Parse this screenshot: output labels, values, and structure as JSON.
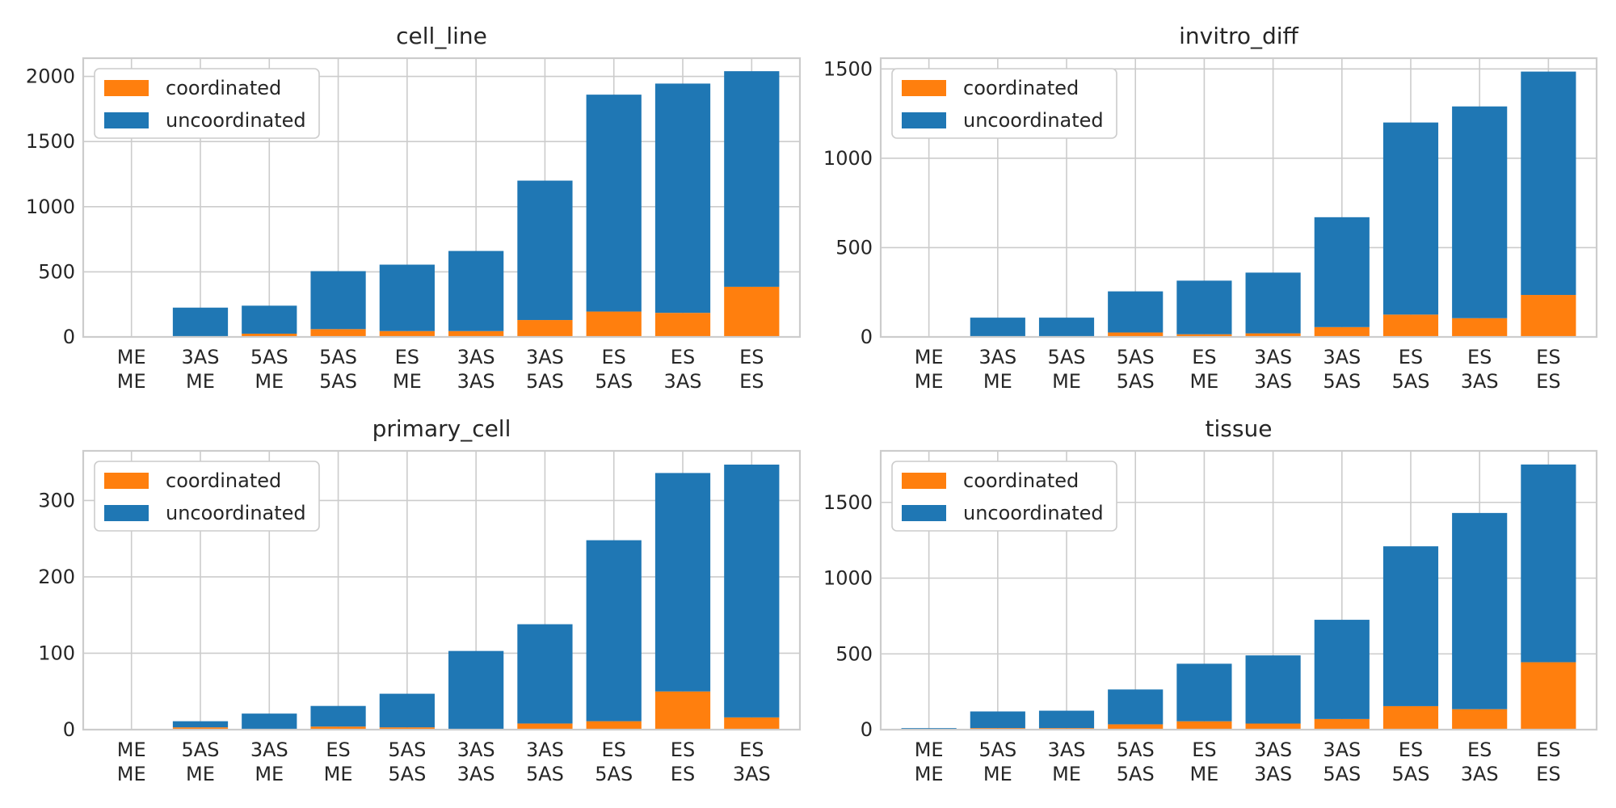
{
  "chart_data": [
    {
      "type": "bar",
      "stacked": true,
      "title": "cell_line",
      "categories": [
        "ME\nME",
        "3AS\nME",
        "5AS\nME",
        "5AS\n5AS",
        "ES\nME",
        "3AS\n3AS",
        "3AS\n5AS",
        "ES\n5AS",
        "ES\n3AS",
        "ES\nES"
      ],
      "series": [
        {
          "name": "coordinated",
          "color": "#ff7f0e",
          "values": [
            0,
            5,
            25,
            60,
            45,
            45,
            130,
            195,
            185,
            385
          ]
        },
        {
          "name": "uncoordinated",
          "color": "#1f77b4",
          "values": [
            0,
            220,
            215,
            445,
            510,
            615,
            1070,
            1665,
            1760,
            1655
          ]
        }
      ],
      "ylim": [
        0,
        2140
      ],
      "yticks": [
        0,
        500,
        1000,
        1500,
        2000
      ],
      "grid": true,
      "legend": "top-left"
    },
    {
      "type": "bar",
      "stacked": true,
      "title": "invitro_diff",
      "categories": [
        "ME\nME",
        "3AS\nME",
        "5AS\nME",
        "5AS\n5AS",
        "ES\nME",
        "3AS\n3AS",
        "3AS\n5AS",
        "ES\n5AS",
        "ES\n3AS",
        "ES\nES"
      ],
      "series": [
        {
          "name": "coordinated",
          "color": "#ff7f0e",
          "values": [
            0,
            3,
            3,
            25,
            15,
            20,
            55,
            125,
            105,
            235
          ]
        },
        {
          "name": "uncoordinated",
          "color": "#1f77b4",
          "values": [
            0,
            105,
            105,
            230,
            300,
            340,
            615,
            1075,
            1185,
            1250
          ]
        }
      ],
      "ylim": [
        0,
        1560
      ],
      "yticks": [
        0,
        500,
        1000,
        1500
      ],
      "grid": true,
      "legend": "top-left"
    },
    {
      "type": "bar",
      "stacked": true,
      "title": "primary_cell",
      "categories": [
        "ME\nME",
        "5AS\nME",
        "3AS\nME",
        "ES\nME",
        "5AS\n5AS",
        "3AS\n3AS",
        "3AS\n5AS",
        "ES\n5AS",
        "ES\nES",
        "ES\n3AS"
      ],
      "series": [
        {
          "name": "coordinated",
          "color": "#ff7f0e",
          "values": [
            0,
            3,
            1,
            4,
            3,
            1,
            8,
            11,
            50,
            16
          ]
        },
        {
          "name": "uncoordinated",
          "color": "#1f77b4",
          "values": [
            1,
            8,
            20,
            27,
            44,
            102,
            130,
            237,
            286,
            331
          ]
        }
      ],
      "ylim": [
        0,
        365
      ],
      "yticks": [
        0,
        100,
        200,
        300
      ],
      "grid": true,
      "legend": "top-left"
    },
    {
      "type": "bar",
      "stacked": true,
      "title": "tissue",
      "categories": [
        "ME\nME",
        "5AS\nME",
        "3AS\nME",
        "5AS\n5AS",
        "ES\nME",
        "3AS\n3AS",
        "3AS\n5AS",
        "ES\n5AS",
        "ES\n3AS",
        "ES\nES"
      ],
      "series": [
        {
          "name": "coordinated",
          "color": "#ff7f0e",
          "values": [
            2,
            10,
            10,
            35,
            55,
            40,
            70,
            155,
            135,
            445
          ]
        },
        {
          "name": "uncoordinated",
          "color": "#1f77b4",
          "values": [
            8,
            110,
            115,
            230,
            380,
            450,
            655,
            1055,
            1295,
            1305
          ]
        }
      ],
      "ylim": [
        0,
        1840
      ],
      "yticks": [
        0,
        500,
        1000,
        1500
      ],
      "grid": true,
      "legend": "top-left"
    }
  ]
}
